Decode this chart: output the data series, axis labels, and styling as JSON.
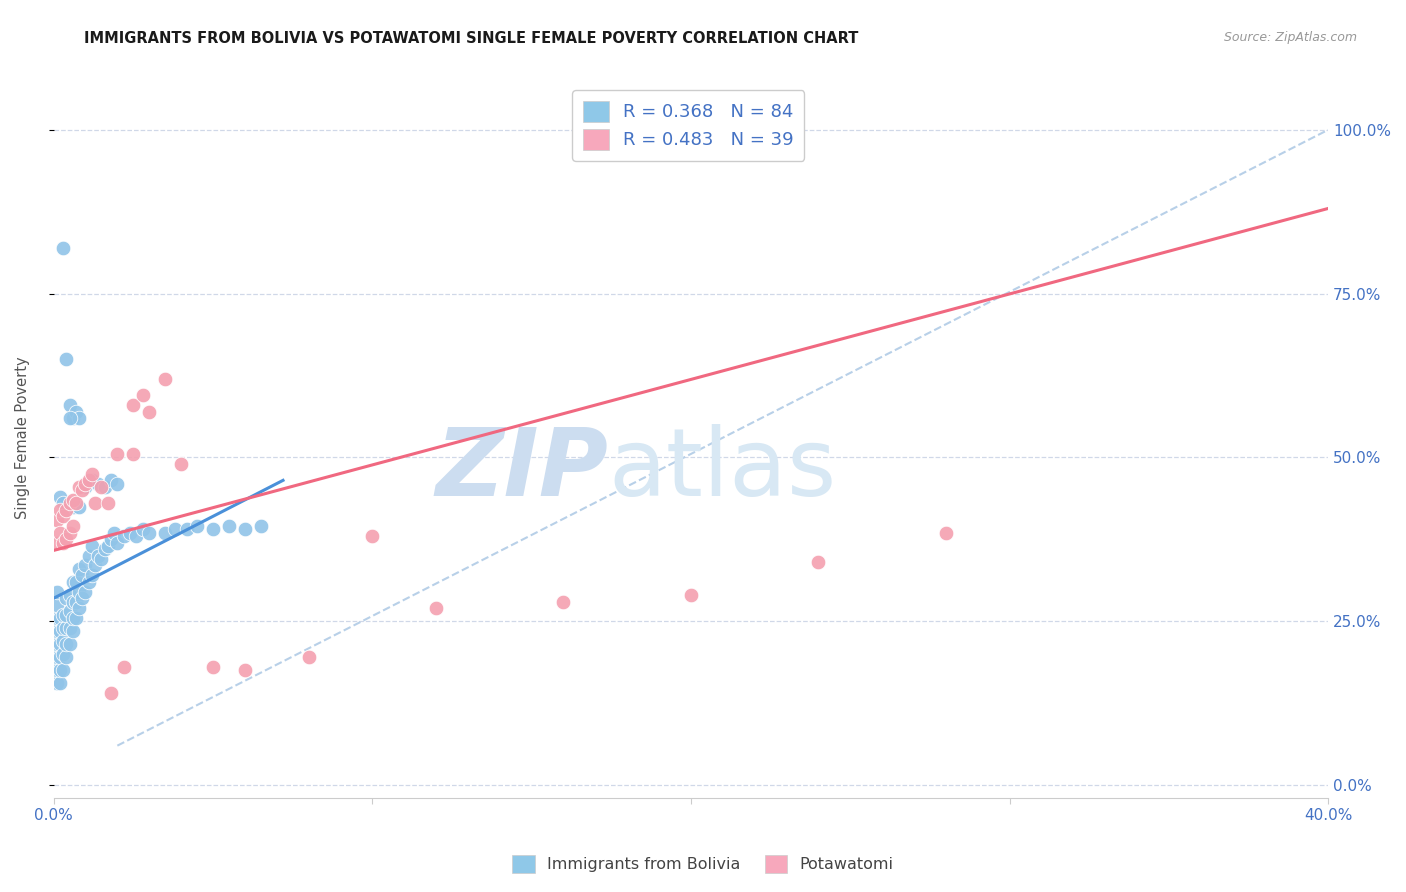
{
  "title": "IMMIGRANTS FROM BOLIVIA VS POTAWATOMI SINGLE FEMALE POVERTY CORRELATION CHART",
  "source": "Source: ZipAtlas.com",
  "ylabel": "Single Female Poverty",
  "ytick_vals": [
    0.0,
    0.25,
    0.5,
    0.75,
    1.0
  ],
  "ytick_labels_right": [
    "0.0%",
    "25.0%",
    "50.0%",
    "75.0%",
    "100.0%"
  ],
  "xlim": [
    0.0,
    0.4
  ],
  "ylim": [
    -0.02,
    1.08
  ],
  "legend_color1": "#8fc8e8",
  "legend_color2": "#f7a8bc",
  "watermark_zip": "ZIP",
  "watermark_atlas": "atlas",
  "background_color": "#ffffff",
  "grid_color": "#d0d8e8",
  "bolivia_color": "#90c4e8",
  "potawatomi_color": "#f4a0b0",
  "bolivia_line_color": "#4a90d9",
  "potawatomi_line_color": "#f06880",
  "dashed_line_color": "#b8d0e8",
  "bolivia_scatter_x": [
    0.001,
    0.001,
    0.001,
    0.001,
    0.001,
    0.001,
    0.001,
    0.001,
    0.002,
    0.002,
    0.002,
    0.002,
    0.002,
    0.002,
    0.003,
    0.003,
    0.003,
    0.003,
    0.003,
    0.004,
    0.004,
    0.004,
    0.004,
    0.004,
    0.005,
    0.005,
    0.005,
    0.005,
    0.006,
    0.006,
    0.006,
    0.006,
    0.007,
    0.007,
    0.007,
    0.008,
    0.008,
    0.008,
    0.009,
    0.009,
    0.01,
    0.01,
    0.011,
    0.011,
    0.012,
    0.012,
    0.013,
    0.014,
    0.015,
    0.016,
    0.017,
    0.018,
    0.019,
    0.02,
    0.022,
    0.024,
    0.026,
    0.028,
    0.03,
    0.035,
    0.038,
    0.042,
    0.045,
    0.05,
    0.055,
    0.06,
    0.065,
    0.01,
    0.012,
    0.014,
    0.016,
    0.018,
    0.02,
    0.005,
    0.006,
    0.007,
    0.008,
    0.003,
    0.004,
    0.005,
    0.002,
    0.003,
    0.006,
    0.008
  ],
  "bolivia_scatter_y": [
    0.155,
    0.175,
    0.195,
    0.215,
    0.235,
    0.255,
    0.275,
    0.295,
    0.155,
    0.175,
    0.195,
    0.215,
    0.235,
    0.255,
    0.175,
    0.2,
    0.22,
    0.24,
    0.26,
    0.195,
    0.215,
    0.24,
    0.26,
    0.285,
    0.215,
    0.24,
    0.265,
    0.29,
    0.235,
    0.255,
    0.28,
    0.31,
    0.255,
    0.28,
    0.31,
    0.27,
    0.295,
    0.33,
    0.285,
    0.32,
    0.295,
    0.335,
    0.31,
    0.35,
    0.32,
    0.365,
    0.335,
    0.35,
    0.345,
    0.36,
    0.365,
    0.375,
    0.385,
    0.37,
    0.38,
    0.385,
    0.38,
    0.39,
    0.385,
    0.385,
    0.39,
    0.39,
    0.395,
    0.39,
    0.395,
    0.39,
    0.395,
    0.455,
    0.465,
    0.46,
    0.455,
    0.465,
    0.46,
    0.58,
    0.56,
    0.57,
    0.56,
    0.82,
    0.65,
    0.56,
    0.44,
    0.43,
    0.425,
    0.425
  ],
  "potawatomi_scatter_x": [
    0.001,
    0.001,
    0.002,
    0.002,
    0.003,
    0.003,
    0.004,
    0.004,
    0.005,
    0.005,
    0.006,
    0.006,
    0.007,
    0.008,
    0.009,
    0.01,
    0.011,
    0.012,
    0.013,
    0.015,
    0.017,
    0.02,
    0.025,
    0.03,
    0.04,
    0.025,
    0.028,
    0.035,
    0.1,
    0.12,
    0.16,
    0.2,
    0.24,
    0.28,
    0.018,
    0.022,
    0.05,
    0.06,
    0.08
  ],
  "potawatomi_scatter_y": [
    0.37,
    0.405,
    0.385,
    0.42,
    0.37,
    0.41,
    0.375,
    0.42,
    0.385,
    0.43,
    0.395,
    0.435,
    0.43,
    0.455,
    0.45,
    0.46,
    0.465,
    0.475,
    0.43,
    0.455,
    0.43,
    0.505,
    0.505,
    0.57,
    0.49,
    0.58,
    0.595,
    0.62,
    0.38,
    0.27,
    0.28,
    0.29,
    0.34,
    0.385,
    0.14,
    0.18,
    0.18,
    0.175,
    0.195
  ],
  "bolivia_line_x": [
    0.0,
    0.072
  ],
  "bolivia_line_y": [
    0.285,
    0.465
  ],
  "potawatomi_line_x": [
    0.0,
    0.4
  ],
  "potawatomi_line_y": [
    0.358,
    0.88
  ],
  "dashed_line_x": [
    0.02,
    0.4
  ],
  "dashed_line_y": [
    0.06,
    1.0
  ]
}
